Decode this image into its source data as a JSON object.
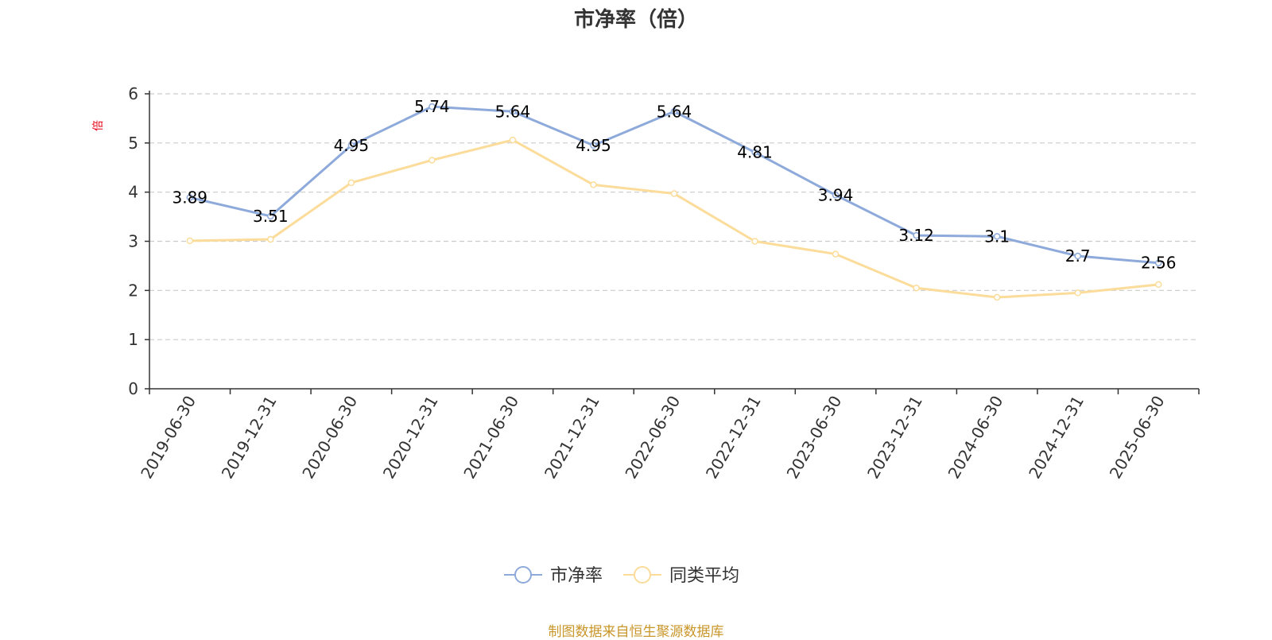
{
  "chart_data": {
    "type": "line",
    "title": "市净率（倍）",
    "ylabel": "倍",
    "ylim": [
      0,
      6
    ],
    "yticks": [
      0,
      1,
      2,
      3,
      4,
      5,
      6
    ],
    "grid": true,
    "legend_position": "bottom-center",
    "categories": [
      "2019-06-30",
      "2019-12-31",
      "2020-06-30",
      "2020-12-31",
      "2021-06-30",
      "2021-12-31",
      "2022-06-30",
      "2022-12-31",
      "2023-06-30",
      "2023-12-31",
      "2024-06-30",
      "2024-12-31",
      "2025-06-30"
    ],
    "series": [
      {
        "name": "市净率",
        "color": "#8eaadb",
        "values": [
          3.89,
          3.51,
          4.95,
          5.74,
          5.64,
          4.95,
          5.64,
          4.81,
          3.94,
          3.12,
          3.1,
          2.7,
          2.56
        ],
        "labels": [
          "3.89",
          "3.51",
          "4.95",
          "5.74",
          "5.64",
          "4.95",
          "5.64",
          "4.81",
          "3.94",
          "3.12",
          "3.1",
          "2.7",
          "2.56"
        ]
      },
      {
        "name": "同类平均",
        "color": "#fbdc9a",
        "values": [
          3.01,
          3.04,
          4.19,
          4.65,
          5.06,
          4.15,
          3.97,
          3.0,
          2.74,
          2.05,
          1.86,
          1.95,
          2.12
        ]
      }
    ]
  },
  "footer": {
    "source": "制图数据来自恒生聚源数据库"
  }
}
